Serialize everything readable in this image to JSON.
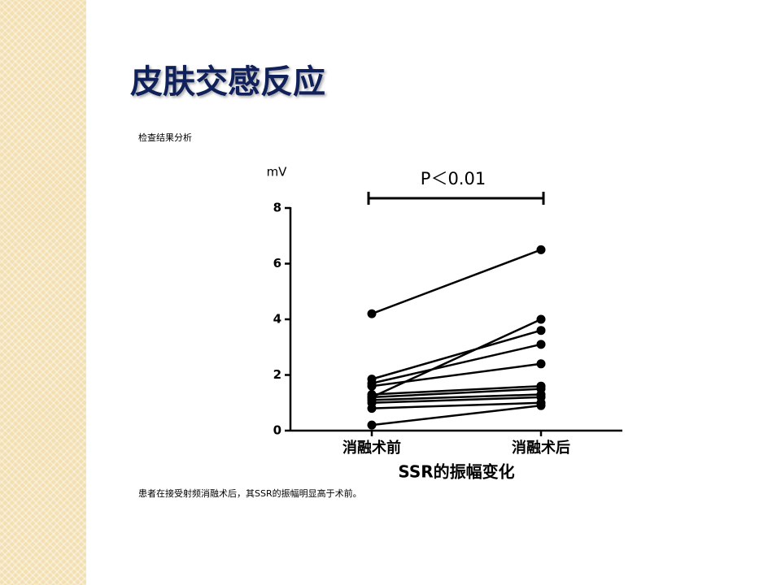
{
  "title": "皮肤交感反应",
  "subtitle": "检查结果分析",
  "caption": "患者在接受射频消融术后，其SSR的振幅明显高于术前。",
  "chart_data": {
    "type": "line",
    "y_unit": "mV",
    "annotation": "P＜0.01",
    "x_label": "SSR的振幅变化",
    "categories": [
      "消融术前",
      "消融术后"
    ],
    "color": "#000000",
    "ylim": [
      0,
      8
    ],
    "yticks": [
      0,
      2,
      4,
      6,
      8
    ],
    "series": [
      {
        "values": [
          4.2,
          6.5
        ]
      },
      {
        "values": [
          1.2,
          4.0
        ]
      },
      {
        "values": [
          1.85,
          3.6
        ]
      },
      {
        "values": [
          1.7,
          3.1
        ]
      },
      {
        "values": [
          1.6,
          2.4
        ]
      },
      {
        "values": [
          1.3,
          1.6
        ]
      },
      {
        "values": [
          1.2,
          1.5
        ]
      },
      {
        "values": [
          1.1,
          1.3
        ]
      },
      {
        "values": [
          1.0,
          1.2
        ]
      },
      {
        "values": [
          0.8,
          1.0
        ]
      },
      {
        "values": [
          0.2,
          0.9
        ]
      }
    ]
  }
}
